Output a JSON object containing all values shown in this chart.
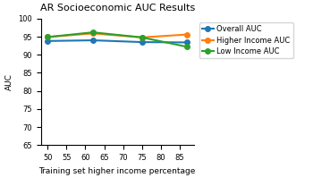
{
  "title": "AR Socioeconomic AUC Results",
  "xlabel": "Training set higher income percentage",
  "ylabel": "AUC",
  "x_values": [
    50,
    62,
    75,
    87
  ],
  "overall_auc": [
    93.8,
    94.0,
    93.5,
    93.4
  ],
  "higher_income_auc": [
    94.9,
    95.9,
    94.8,
    95.6
  ],
  "low_income_auc": [
    94.9,
    96.2,
    94.8,
    92.2
  ],
  "overall_color": "#1f77b4",
  "higher_income_color": "#ff7f0e",
  "low_income_color": "#2ca02c",
  "ylim": [
    65,
    100
  ],
  "yticks": [
    65,
    70,
    75,
    80,
    85,
    90,
    95,
    100
  ],
  "xticks": [
    50,
    55,
    60,
    65,
    70,
    75,
    80,
    85
  ],
  "legend_labels": [
    "Overall AUC",
    "Higher Income AUC",
    "Low Income AUC"
  ],
  "marker": "o",
  "markersize": 4,
  "linewidth": 1.5,
  "title_fontsize": 8,
  "axis_label_fontsize": 6.5,
  "tick_fontsize": 6,
  "legend_fontsize": 6
}
